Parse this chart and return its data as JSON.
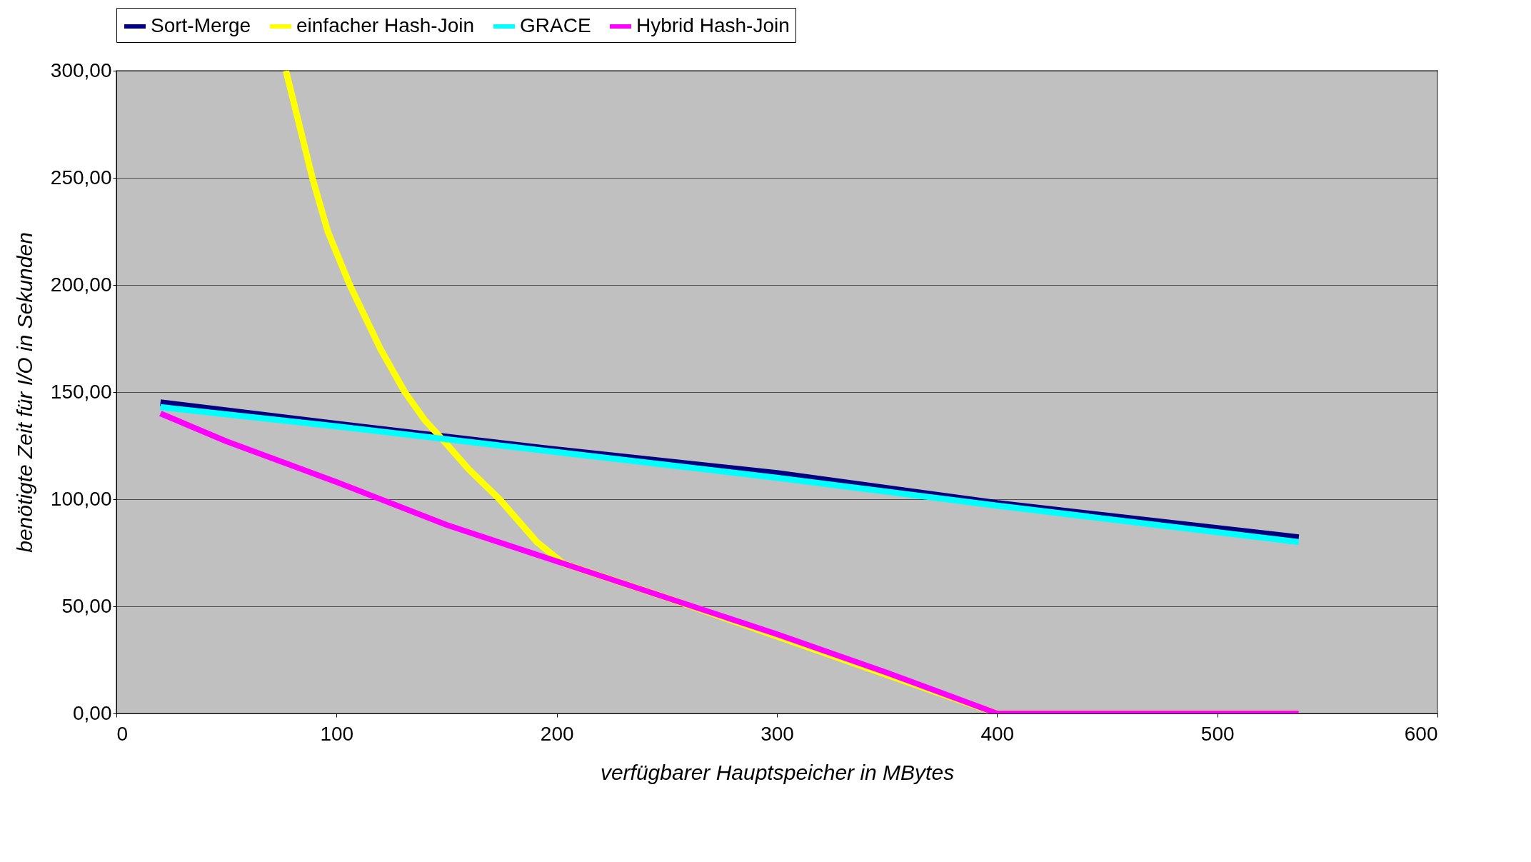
{
  "chart_data": {
    "type": "line",
    "xlabel": "verfügbarer Hauptspeicher in MBytes",
    "ylabel": "benötigte Zeit für I/O in Sekunden",
    "xlim": [
      0,
      600
    ],
    "xticks": [
      0,
      100,
      200,
      300,
      400,
      500,
      600
    ],
    "ylim": [
      0,
      300
    ],
    "yticks": [
      {
        "value": 0,
        "label": "0,00"
      },
      {
        "value": 50,
        "label": "50,00"
      },
      {
        "value": 100,
        "label": "100,00"
      },
      {
        "value": 150,
        "label": "150,00"
      },
      {
        "value": 200,
        "label": "200,00"
      },
      {
        "value": 250,
        "label": "250,00"
      },
      {
        "value": 300,
        "label": "300,00"
      }
    ],
    "grid": "y",
    "legend": "top",
    "marker": "none",
    "line_style": "solid",
    "series": [
      {
        "name": "Sort-Merge",
        "color": "#000080",
        "x": [
          20,
          100,
          200,
          300,
          400,
          537
        ],
        "values": [
          145,
          135,
          123,
          112,
          98,
          82
        ]
      },
      {
        "name": "einfacher Hash-Join",
        "color": "#ffff00",
        "x": [
          77,
          89,
          96,
          106,
          120,
          131,
          140,
          148,
          160,
          174,
          191,
          203,
          250,
          300,
          350,
          400,
          537
        ],
        "values": [
          300,
          250,
          225,
          200,
          170,
          150,
          137,
          128,
          114,
          100,
          80,
          70,
          54,
          36,
          18,
          0,
          0
        ]
      },
      {
        "name": "GRACE",
        "color": "#00ffff",
        "x": [
          20,
          100,
          200,
          300,
          400,
          537
        ],
        "values": [
          143,
          134,
          122,
          110,
          97,
          80
        ]
      },
      {
        "name": "Hybrid Hash-Join",
        "color": "#ff00ff",
        "x": [
          20,
          50,
          100,
          150,
          200,
          250,
          300,
          350,
          400,
          537
        ],
        "values": [
          140,
          127,
          108,
          88,
          71,
          54,
          37,
          19,
          0,
          0
        ]
      }
    ]
  }
}
